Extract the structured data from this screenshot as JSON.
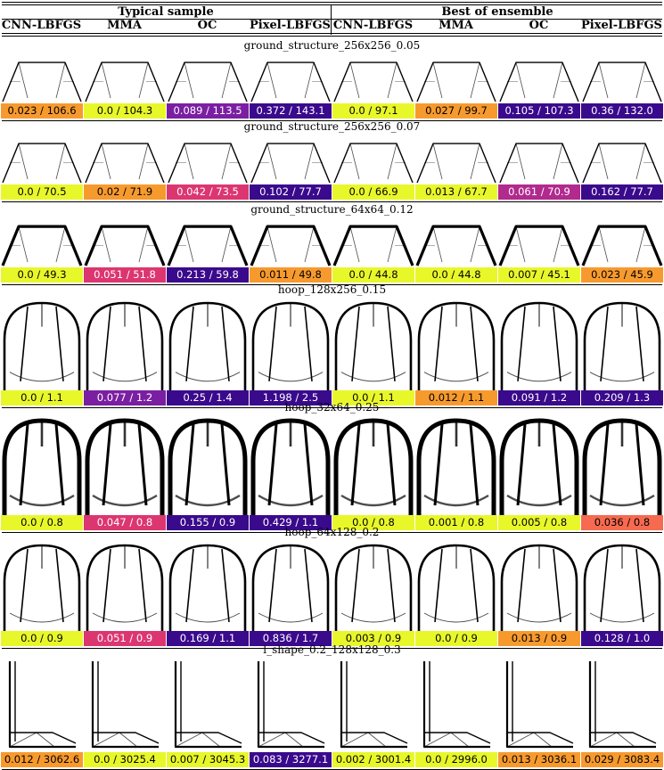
{
  "header": {
    "group_left": "Typical sample",
    "group_right": "Best of ensemble",
    "columns": [
      "CNN-LBFGS",
      "MMA",
      "OC",
      "Pixel-LBFGS",
      "CNN-LBFGS",
      "MMA",
      "OC",
      "Pixel-LBFGS"
    ]
  },
  "colors": {
    "yellow": "#e8f72a",
    "orange": "#f79a2e",
    "salmon": "#f66a4f",
    "pink": "#dc3670",
    "magenta": "#b22a8e",
    "purple": "#7b1fa2",
    "indigo": "#3a0a8c"
  },
  "rows": [
    {
      "title": "ground_structure_256x256_0.05",
      "shape": "gs",
      "cells": [
        {
          "label": "0.023 / 106.6",
          "color": "orange",
          "dark": false
        },
        {
          "label": "0.0 / 104.3",
          "color": "yellow",
          "dark": false
        },
        {
          "label": "0.089 / 113.5",
          "color": "purple",
          "dark": true
        },
        {
          "label": "0.372 / 143.1",
          "color": "indigo",
          "dark": true
        },
        {
          "label": "0.0 / 97.1",
          "color": "yellow",
          "dark": false
        },
        {
          "label": "0.027 / 99.7",
          "color": "orange",
          "dark": false
        },
        {
          "label": "0.105 / 107.3",
          "color": "indigo",
          "dark": true
        },
        {
          "label": "0.36 / 132.0",
          "color": "indigo",
          "dark": true
        }
      ]
    },
    {
      "title": "ground_structure_256x256_0.07",
      "shape": "gs",
      "cells": [
        {
          "label": "0.0 / 70.5",
          "color": "yellow",
          "dark": false
        },
        {
          "label": "0.02 / 71.9",
          "color": "orange",
          "dark": false
        },
        {
          "label": "0.042 / 73.5",
          "color": "pink",
          "dark": true
        },
        {
          "label": "0.102 / 77.7",
          "color": "indigo",
          "dark": true
        },
        {
          "label": "0.0 / 66.9",
          "color": "yellow",
          "dark": false
        },
        {
          "label": "0.013 / 67.7",
          "color": "yellow",
          "dark": false
        },
        {
          "label": "0.061 / 70.9",
          "color": "magenta",
          "dark": true
        },
        {
          "label": "0.162 / 77.7",
          "color": "indigo",
          "dark": true
        }
      ]
    },
    {
      "title": "ground_structure_64x64_0.12",
      "shape": "gs",
      "cells": [
        {
          "label": "0.0 / 49.3",
          "color": "yellow",
          "dark": false
        },
        {
          "label": "0.051 / 51.8",
          "color": "pink",
          "dark": true
        },
        {
          "label": "0.213 / 59.8",
          "color": "indigo",
          "dark": true
        },
        {
          "label": "0.011 / 49.8",
          "color": "orange",
          "dark": false
        },
        {
          "label": "0.0 / 44.8",
          "color": "yellow",
          "dark": false
        },
        {
          "label": "0.0 / 44.8",
          "color": "yellow",
          "dark": false
        },
        {
          "label": "0.007 / 45.1",
          "color": "yellow",
          "dark": false
        },
        {
          "label": "0.023 / 45.9",
          "color": "orange",
          "dark": false
        }
      ]
    },
    {
      "title": "hoop_128x256_0.15",
      "shape": "hoop",
      "cells": [
        {
          "label": "0.0 / 1.1",
          "color": "yellow",
          "dark": false
        },
        {
          "label": "0.077 / 1.2",
          "color": "purple",
          "dark": true
        },
        {
          "label": "0.25 / 1.4",
          "color": "indigo",
          "dark": true
        },
        {
          "label": "1.198 / 2.5",
          "color": "indigo",
          "dark": true
        },
        {
          "label": "0.0 / 1.1",
          "color": "yellow",
          "dark": false
        },
        {
          "label": "0.012 / 1.1",
          "color": "orange",
          "dark": false
        },
        {
          "label": "0.091 / 1.2",
          "color": "indigo",
          "dark": true
        },
        {
          "label": "0.209 / 1.3",
          "color": "indigo",
          "dark": true
        }
      ]
    },
    {
      "title": "hoop_32x64_0.25",
      "shape": "hoop",
      "cells": [
        {
          "label": "0.0 / 0.8",
          "color": "yellow",
          "dark": false
        },
        {
          "label": "0.047 / 0.8",
          "color": "pink",
          "dark": true
        },
        {
          "label": "0.155 / 0.9",
          "color": "indigo",
          "dark": true
        },
        {
          "label": "0.429 / 1.1",
          "color": "indigo",
          "dark": true
        },
        {
          "label": "0.0 / 0.8",
          "color": "yellow",
          "dark": false
        },
        {
          "label": "0.001 / 0.8",
          "color": "yellow",
          "dark": false
        },
        {
          "label": "0.005 / 0.8",
          "color": "yellow",
          "dark": false
        },
        {
          "label": "0.036 / 0.8",
          "color": "salmon",
          "dark": false
        }
      ]
    },
    {
      "title": "hoop_64x128_0.2",
      "shape": "hoop",
      "cells": [
        {
          "label": "0.0 / 0.9",
          "color": "yellow",
          "dark": false
        },
        {
          "label": "0.051 / 0.9",
          "color": "pink",
          "dark": true
        },
        {
          "label": "0.169 / 1.1",
          "color": "indigo",
          "dark": true
        },
        {
          "label": "0.836 / 1.7",
          "color": "indigo",
          "dark": true
        },
        {
          "label": "0.003 / 0.9",
          "color": "yellow",
          "dark": false
        },
        {
          "label": "0.0 / 0.9",
          "color": "yellow",
          "dark": false
        },
        {
          "label": "0.013 / 0.9",
          "color": "orange",
          "dark": false
        },
        {
          "label": "0.128 / 1.0",
          "color": "indigo",
          "dark": true
        }
      ]
    },
    {
      "title": "l_shape_0.2_128x128_0.3",
      "shape": "lshape",
      "cells": [
        {
          "label": "0.012 / 3062.6",
          "color": "orange",
          "dark": false
        },
        {
          "label": "0.0 / 3025.4",
          "color": "yellow",
          "dark": false
        },
        {
          "label": "0.007 / 3045.3",
          "color": "yellow",
          "dark": false
        },
        {
          "label": "0.083 / 3277.1",
          "color": "indigo",
          "dark": true
        },
        {
          "label": "0.002 / 3001.4",
          "color": "yellow",
          "dark": false
        },
        {
          "label": "0.0 / 2996.0",
          "color": "yellow",
          "dark": false
        },
        {
          "label": "0.013 / 3036.1",
          "color": "orange",
          "dark": false
        },
        {
          "label": "0.029 / 3083.4",
          "color": "orange",
          "dark": false
        }
      ]
    }
  ]
}
